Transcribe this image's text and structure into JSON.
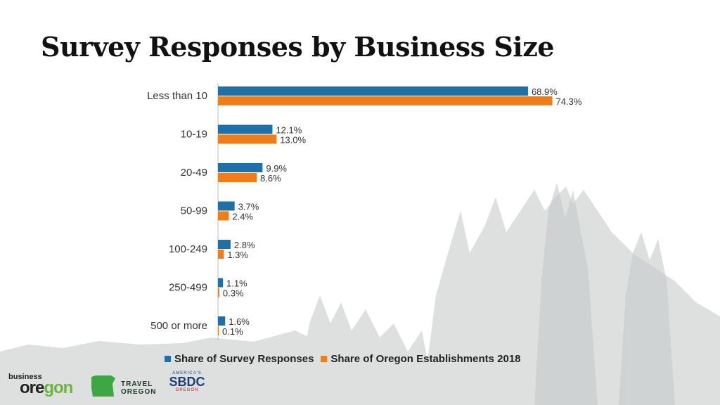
{
  "slide": {
    "title": "Survey Responses by Business Size"
  },
  "colors": {
    "series1": "#1f6fa8",
    "series2": "#f07d17",
    "trees": "#d3d6d5"
  },
  "chart_data": {
    "type": "bar",
    "orientation": "horizontal",
    "categories": [
      "Less than 10",
      "10-19",
      "20-49",
      "50-99",
      "100-249",
      "250-499",
      "500 or more"
    ],
    "series": [
      {
        "name": "Share of Survey Responses",
        "values": [
          68.9,
          12.1,
          9.9,
          3.7,
          2.8,
          1.1,
          1.6
        ],
        "labels": [
          "68.9%",
          "12.1%",
          "9.9%",
          "3.7%",
          "2.8%",
          "1.1%",
          "1.6%"
        ]
      },
      {
        "name": "Share of Oregon Establishments 2018",
        "values": [
          74.3,
          13.0,
          8.6,
          2.4,
          1.3,
          0.3,
          0.1
        ],
        "labels": [
          "74.3%",
          "13.0%",
          "8.6%",
          "2.4%",
          "1.3%",
          "0.3%",
          "0.1%"
        ]
      }
    ],
    "legend_position": "bottom",
    "grid": false
  },
  "logos": {
    "business_oregon": {
      "small": "business",
      "big_a": "ore",
      "big_b": "gon"
    },
    "travel_oregon": {
      "line1": "TRAVEL",
      "line2": "OREGON"
    },
    "sbdc": {
      "top": "AMERICA'S",
      "mid": "SBDC",
      "bot": "OREGON"
    }
  }
}
